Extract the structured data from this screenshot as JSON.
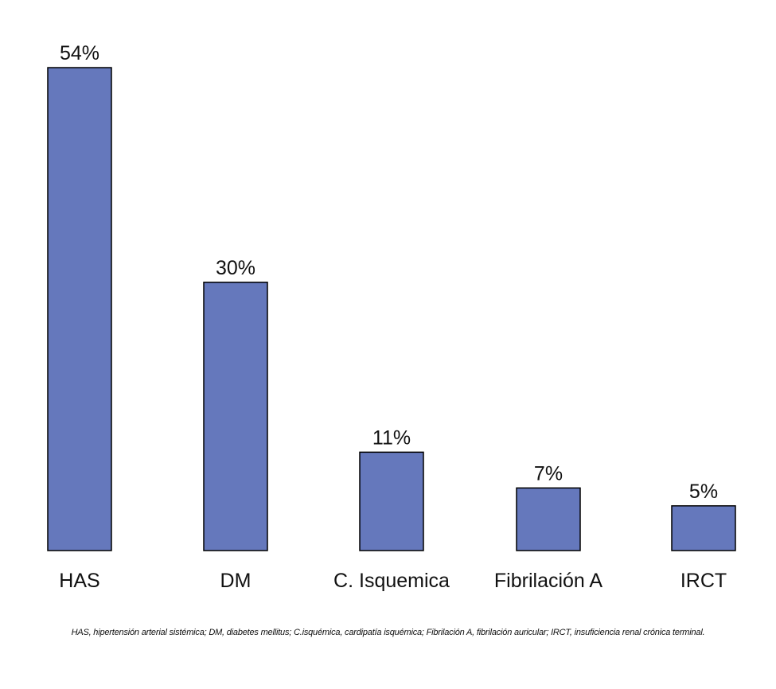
{
  "chart_data": {
    "type": "bar",
    "categories": [
      "HAS",
      "DM",
      "C. Isquemica",
      "Fibrilación A",
      "IRCT"
    ],
    "values": [
      54,
      30,
      11,
      7,
      5
    ],
    "value_labels": [
      "54%",
      "30%",
      "11%",
      "7%",
      "5%"
    ],
    "unit": "%",
    "ylim": [
      0,
      54
    ],
    "grid": false,
    "legend": "none",
    "bar_color": "#6578BC",
    "bar_outline_color": "#000000"
  },
  "footnote": "HAS, hipertensión arterial sistémica; DM, diabetes mellitus; C.isquémica, cardipatía isquémica; Fibrilación A, fibrilación auricular; IRCT, insuficiencia renal crónica terminal."
}
